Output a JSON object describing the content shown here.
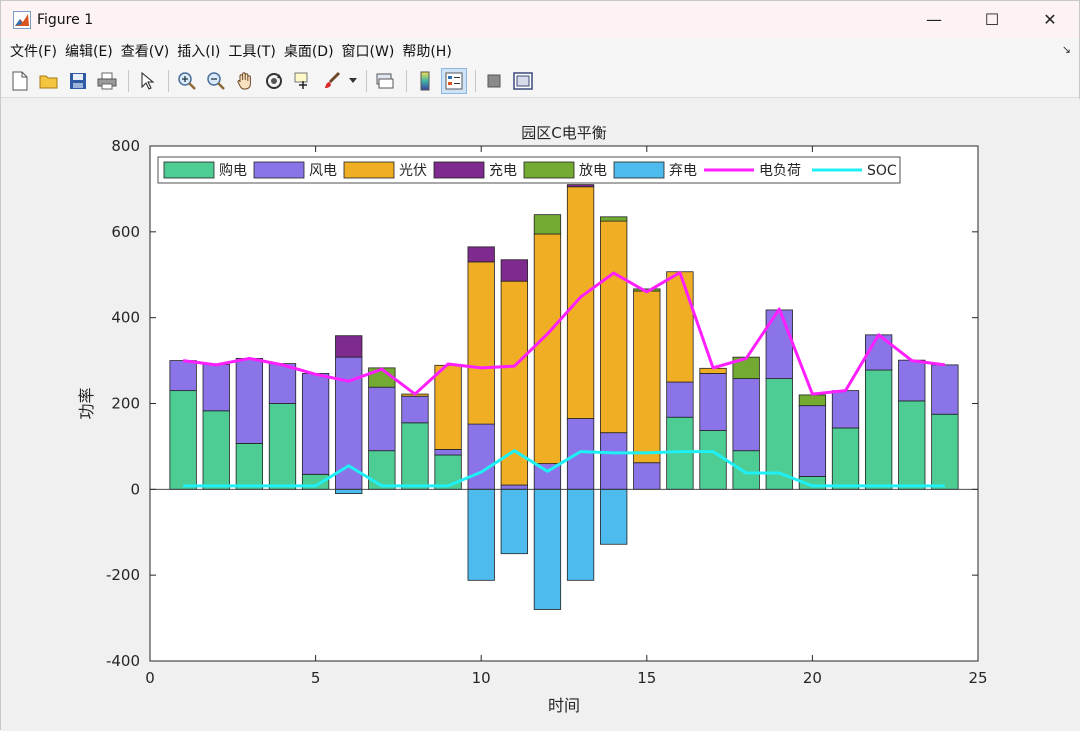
{
  "window": {
    "title": "Figure 1",
    "minimize": "—",
    "maximize": "☐",
    "close": "✕"
  },
  "menu": [
    "文件(F)",
    "编辑(E)",
    "查看(V)",
    "插入(I)",
    "工具(T)",
    "桌面(D)",
    "窗口(W)",
    "帮助(H)"
  ],
  "toolbar": [
    "new-figure-icon",
    "open-folder-icon",
    "save-icon",
    "print-icon",
    "select-arrow-icon",
    "zoom-in-icon",
    "zoom-out-icon",
    "pan-hand-icon",
    "rotate-3d-icon",
    "data-cursor-icon",
    "brush-icon",
    "link-plot-icon",
    "colorbar-icon",
    "legend-icon",
    "hide-plot-tools-icon",
    "show-plot-tools-icon"
  ],
  "chart_data": {
    "type": "bar",
    "title": "园区C电平衡",
    "xlabel": "时间",
    "ylabel": "功率",
    "xlim": [
      0,
      25
    ],
    "ylim": [
      -400,
      800
    ],
    "xticks": [
      0,
      5,
      10,
      15,
      20,
      25
    ],
    "yticks": [
      -400,
      -200,
      0,
      200,
      400,
      600,
      800
    ],
    "legend_location": "top-left",
    "x": [
      1,
      2,
      3,
      4,
      5,
      6,
      7,
      8,
      9,
      10,
      11,
      12,
      13,
      14,
      15,
      16,
      17,
      18,
      19,
      20,
      21,
      22,
      23,
      24
    ],
    "stacked_series": [
      {
        "name": "购电",
        "color": "#4dcc94",
        "values": [
          230,
          183,
          107,
          200,
          35,
          0,
          90,
          155,
          80,
          0,
          0,
          0,
          0,
          0,
          0,
          168,
          137,
          90,
          258,
          30,
          143,
          278,
          206,
          175
        ]
      },
      {
        "name": "风电",
        "color": "#8a74e8",
        "values": [
          70,
          108,
          198,
          93,
          235,
          308,
          148,
          62,
          13,
          152,
          10,
          60,
          165,
          132,
          62,
          82,
          133,
          168,
          160,
          165,
          87,
          82,
          95,
          115
        ]
      },
      {
        "name": "光伏",
        "color": "#efae24",
        "values": [
          0,
          0,
          0,
          0,
          0,
          0,
          0,
          5,
          196,
          378,
          475,
          535,
          540,
          493,
          400,
          257,
          12,
          0,
          0,
          0,
          0,
          0,
          0,
          0
        ]
      },
      {
        "name": "充电",
        "color": "#7e2a8e",
        "values": [
          0,
          0,
          0,
          0,
          0,
          50,
          0,
          0,
          0,
          35,
          50,
          0,
          5,
          0,
          0,
          0,
          0,
          0,
          0,
          0,
          0,
          0,
          0,
          0
        ]
      },
      {
        "name": "放电",
        "color": "#72aa32",
        "values": [
          0,
          0,
          0,
          0,
          0,
          0,
          45,
          0,
          0,
          0,
          0,
          45,
          0,
          10,
          5,
          0,
          0,
          50,
          0,
          25,
          0,
          0,
          0,
          0
        ]
      },
      {
        "name": "弃电",
        "color": "#4dbbee",
        "values": [
          0,
          0,
          0,
          0,
          0,
          -10,
          0,
          0,
          0,
          -212,
          -150,
          -280,
          -212,
          -128,
          0,
          0,
          0,
          0,
          0,
          0,
          0,
          0,
          0,
          0
        ]
      }
    ],
    "line_series": [
      {
        "name": "电负荷",
        "color": "#ff1fff",
        "values": [
          300,
          290,
          305,
          290,
          268,
          252,
          280,
          222,
          292,
          283,
          287,
          362,
          448,
          504,
          460,
          505,
          283,
          305,
          420,
          222,
          230,
          360,
          300,
          290
        ]
      },
      {
        "name": "SOC",
        "color": "#1ff0f5",
        "values": [
          8,
          8,
          8,
          8,
          8,
          55,
          8,
          8,
          8,
          40,
          90,
          42,
          88,
          85,
          85,
          88,
          88,
          38,
          38,
          8,
          8,
          8,
          8,
          8
        ]
      }
    ]
  }
}
